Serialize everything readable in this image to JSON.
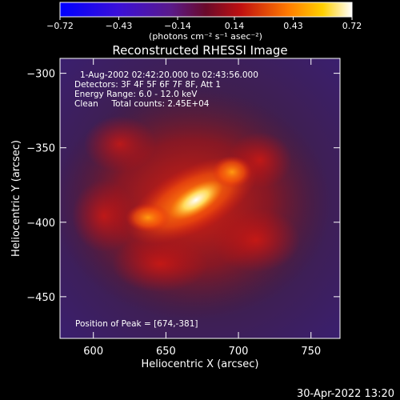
{
  "chart_data": {
    "type": "heatmap",
    "title": "Reconstructed RHESSI Image",
    "xlabel": "Heliocentric X (arcsec)",
    "ylabel": "Heliocentric Y (arcsec)",
    "xlim": [
      577,
      770
    ],
    "ylim": [
      -478,
      -290
    ],
    "x_ticks": [
      600,
      650,
      700,
      750
    ],
    "x_tick_labels": [
      "600",
      "650",
      "700",
      "750"
    ],
    "y_ticks": [
      -300,
      -350,
      -400,
      -450
    ],
    "y_tick_labels": [
      "−300",
      "−350",
      "−400",
      "−450"
    ],
    "colorbar": {
      "range": [
        -0.72,
        0.72
      ],
      "ticks": [
        -0.72,
        -0.43,
        -0.14,
        0.14,
        0.43,
        0.72
      ],
      "tick_labels": [
        "−0.72",
        "−0.43",
        "−0.14",
        "0.14",
        "0.43",
        "0.72"
      ],
      "unit_label": "(photons cm⁻² s⁻¹ asec⁻²)",
      "colormap": "blue-purple-red-orange-yellow-white"
    },
    "annotations": [
      "1-Aug-2002 02:42:20.000 to 02:43:56.000",
      "Detectors: 3F 4F 5F 6F 7F 8F, Att 1",
      "Energy Range: 6.0 - 12.0 keV",
      "Clean     Total counts: 2.45E+04"
    ],
    "peak_label": "Position of Peak = [674,-381]",
    "peak": [
      674,
      -381
    ],
    "grid": false
  },
  "timestamp": "30-Apr-2022 13:20"
}
